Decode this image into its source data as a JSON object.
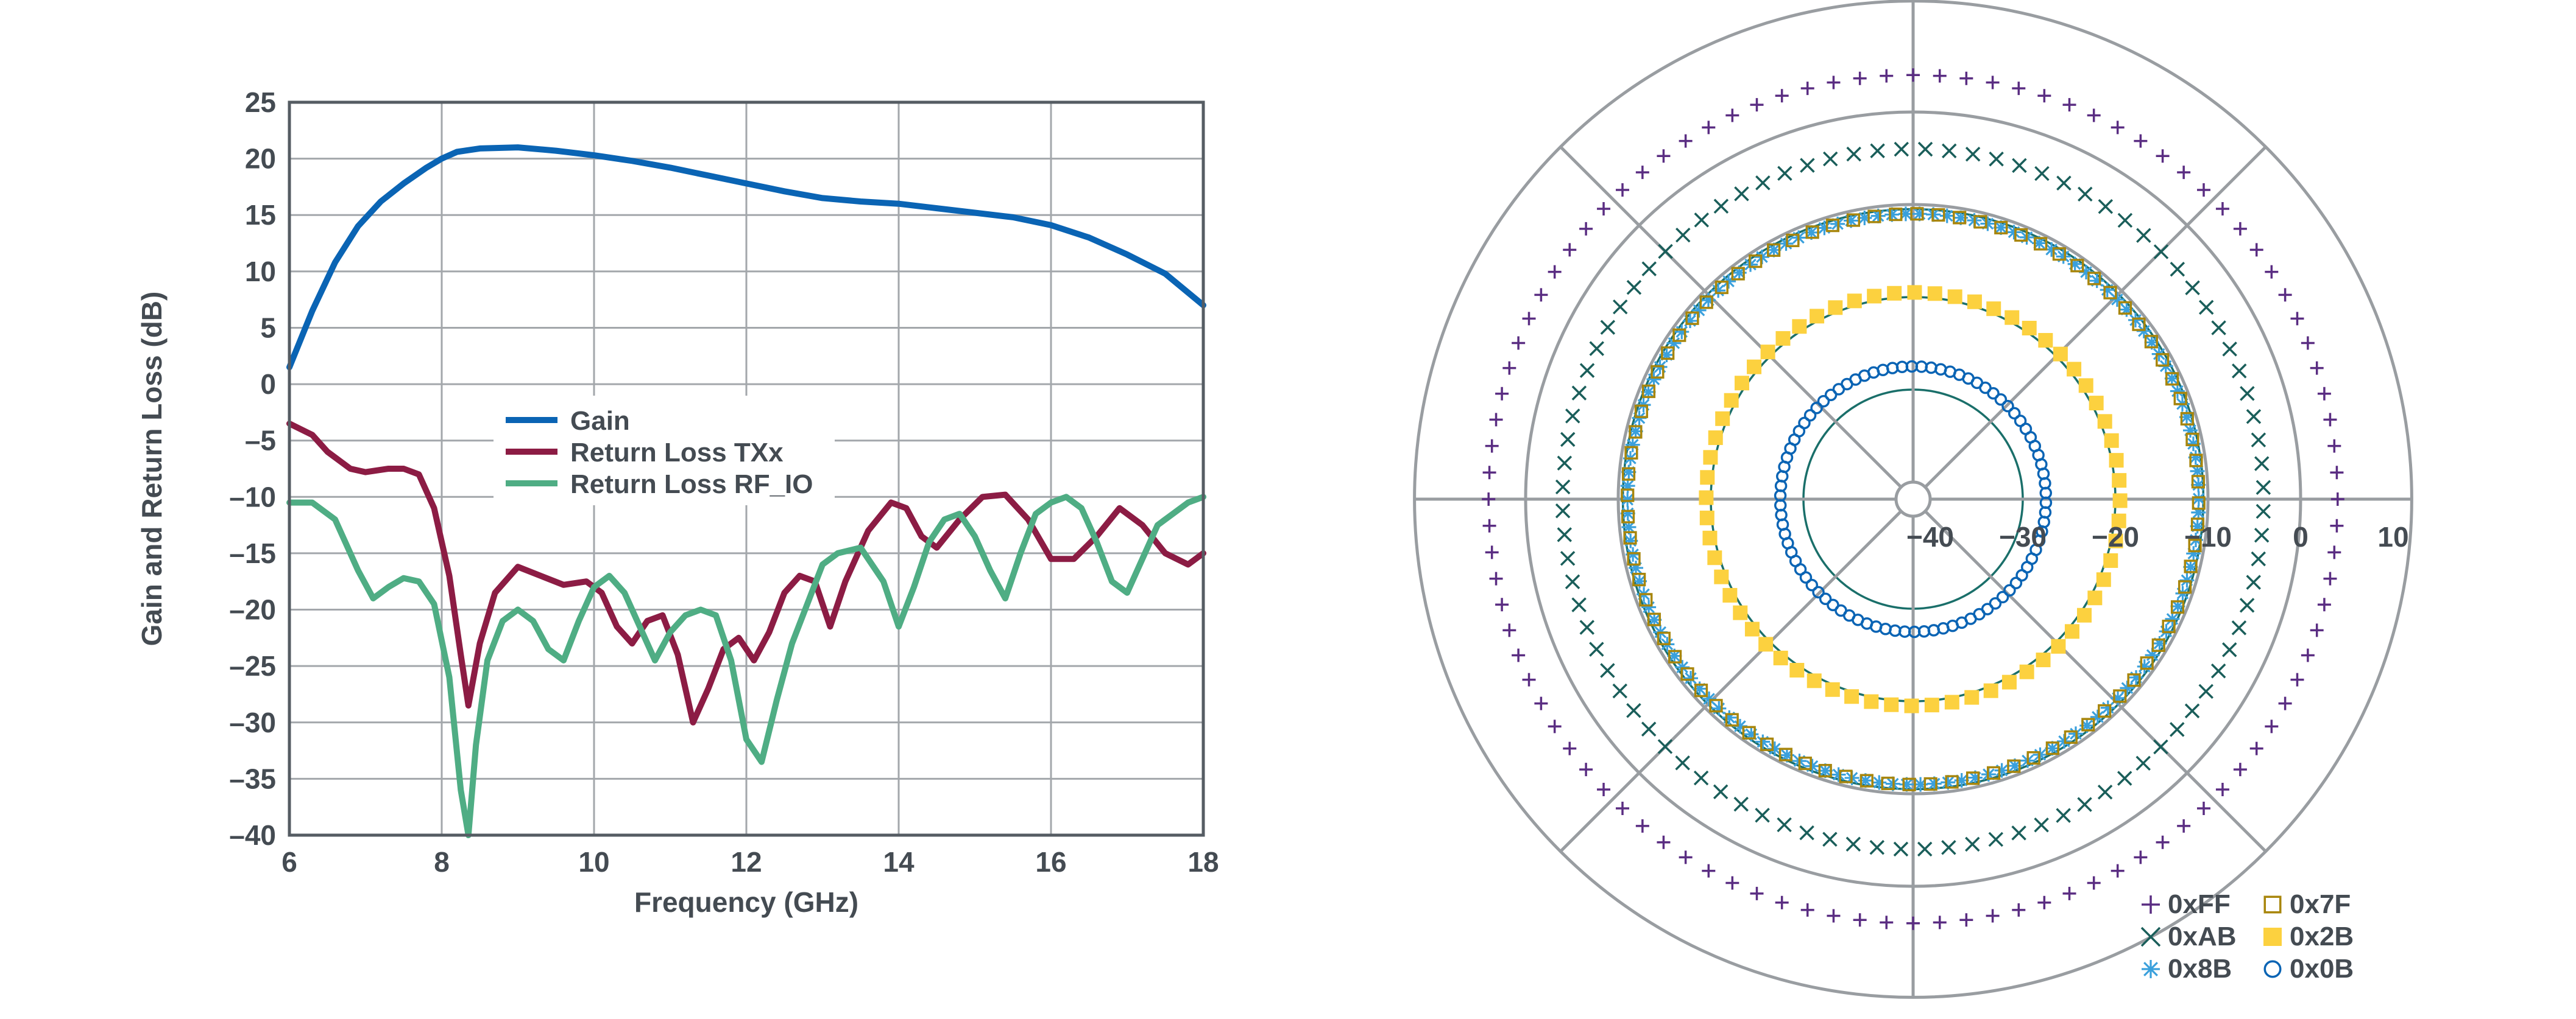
{
  "chart_data": [
    {
      "type": "line",
      "title": "",
      "xlabel": "Frequency (GHz)",
      "ylabel": "Gain and Return Loss (dB)",
      "xlim": [
        6,
        18
      ],
      "ylim": [
        -40,
        25
      ],
      "x_ticks": [
        "6",
        "8",
        "10",
        "12",
        "14",
        "16",
        "18"
      ],
      "y_ticks": [
        "25",
        "20",
        "15",
        "10",
        "5",
        "0",
        "–5",
        "–10",
        "–15",
        "–20",
        "–25",
        "–30",
        "–35",
        "–40"
      ],
      "grid": true,
      "legend_position": "center-left",
      "series": [
        {
          "name": "Gain",
          "color": "#0a64b4",
          "x": [
            6,
            6.3,
            6.6,
            6.9,
            7.2,
            7.5,
            7.8,
            8.0,
            8.2,
            8.5,
            9.0,
            9.5,
            10.0,
            10.5,
            11.0,
            11.5,
            12.0,
            12.5,
            13.0,
            13.5,
            14.0,
            14.5,
            15.0,
            15.5,
            16.0,
            16.5,
            17.0,
            17.5,
            18.0
          ],
          "y": [
            1.5,
            6.5,
            10.8,
            14.0,
            16.2,
            17.8,
            19.2,
            20.0,
            20.6,
            20.9,
            21.0,
            20.7,
            20.3,
            19.8,
            19.2,
            18.5,
            17.8,
            17.1,
            16.5,
            16.2,
            16.0,
            15.6,
            15.2,
            14.8,
            14.1,
            13.0,
            11.5,
            9.8,
            7.0
          ]
        },
        {
          "name": "Return Loss TXx",
          "color": "#8c1c44",
          "x": [
            6,
            6.3,
            6.5,
            6.8,
            7.0,
            7.3,
            7.5,
            7.7,
            7.9,
            8.1,
            8.25,
            8.35,
            8.5,
            8.7,
            9.0,
            9.3,
            9.6,
            9.9,
            10.1,
            10.3,
            10.5,
            10.7,
            10.9,
            11.1,
            11.3,
            11.5,
            11.7,
            11.9,
            12.1,
            12.3,
            12.5,
            12.7,
            12.9,
            13.1,
            13.3,
            13.6,
            13.9,
            14.1,
            14.3,
            14.5,
            14.8,
            15.1,
            15.4,
            15.7,
            16.0,
            16.3,
            16.6,
            16.9,
            17.2,
            17.5,
            17.8,
            18.0
          ],
          "y": [
            -3.5,
            -4.5,
            -6.0,
            -7.5,
            -7.8,
            -7.5,
            -7.5,
            -8.0,
            -11.0,
            -17.0,
            -24.0,
            -28.5,
            -23.0,
            -18.5,
            -16.2,
            -17.0,
            -17.8,
            -17.5,
            -18.5,
            -21.5,
            -23.0,
            -21.0,
            -20.5,
            -24.0,
            -30.0,
            -27.0,
            -23.5,
            -22.5,
            -24.5,
            -22.0,
            -18.5,
            -17.0,
            -17.5,
            -21.5,
            -17.5,
            -13.0,
            -10.5,
            -11.0,
            -13.5,
            -14.5,
            -12.0,
            -10.0,
            -9.8,
            -12.0,
            -15.5,
            -15.5,
            -13.5,
            -11.0,
            -12.5,
            -15.0,
            -16.0,
            -15.0
          ]
        },
        {
          "name": "Return Loss RF_IO",
          "color": "#4fad84",
          "x": [
            6,
            6.3,
            6.6,
            6.9,
            7.1,
            7.3,
            7.5,
            7.7,
            7.9,
            8.1,
            8.25,
            8.35,
            8.45,
            8.6,
            8.8,
            9.0,
            9.2,
            9.4,
            9.6,
            9.8,
            10.0,
            10.2,
            10.4,
            10.6,
            10.8,
            11.0,
            11.2,
            11.4,
            11.6,
            11.8,
            12.0,
            12.2,
            12.4,
            12.6,
            12.8,
            13.0,
            13.2,
            13.5,
            13.8,
            14.0,
            14.2,
            14.4,
            14.6,
            14.8,
            15.0,
            15.2,
            15.4,
            15.6,
            15.8,
            16.0,
            16.2,
            16.4,
            16.6,
            16.8,
            17.0,
            17.2,
            17.4,
            17.6,
            17.8,
            18.0
          ],
          "y": [
            -10.5,
            -10.5,
            -12.0,
            -16.5,
            -19.0,
            -18.0,
            -17.2,
            -17.5,
            -19.5,
            -26.0,
            -36.0,
            -40.0,
            -32.0,
            -24.5,
            -21.0,
            -20.0,
            -21.0,
            -23.5,
            -24.5,
            -21.0,
            -18.0,
            -17.0,
            -18.5,
            -21.5,
            -24.5,
            -22.0,
            -20.5,
            -20.0,
            -20.5,
            -24.5,
            -31.5,
            -33.5,
            -28.0,
            -23.0,
            -19.5,
            -16.0,
            -15.0,
            -14.5,
            -17.5,
            -21.5,
            -18.0,
            -14.0,
            -12.0,
            -11.5,
            -13.5,
            -16.5,
            -19.0,
            -15.0,
            -11.5,
            -10.5,
            -10.0,
            -11.0,
            -14.0,
            -17.5,
            -18.5,
            -15.5,
            -12.5,
            -11.5,
            -10.5,
            -10.0
          ]
        }
      ]
    },
    {
      "type": "polar-scatter",
      "title": "",
      "r_ticks": [
        "−40",
        "−30",
        "−20",
        "−10",
        "0",
        "10"
      ],
      "r_values": [
        -40,
        -30,
        -20,
        -10,
        0,
        10
      ],
      "r_min": -40,
      "r_max": 10,
      "angular_grid_deg": [
        0,
        45,
        90,
        135,
        180,
        225,
        270,
        315
      ],
      "legend_position": "bottom-right",
      "series": [
        {
          "name": "0xFF",
          "marker": "plus",
          "color": "#5a2d82",
          "radius": 4,
          "count": 100
        },
        {
          "name": "0xAB",
          "marker": "x",
          "color": "#1a5e5a",
          "radius": -4,
          "count": 92
        },
        {
          "name": "0x8B",
          "marker": "asterisk",
          "color": "#3aa0dc",
          "radius": -11,
          "count": 130
        },
        {
          "name": "0x7F",
          "marker": "open-square",
          "color": "#a8860c",
          "radius": -11,
          "count": 84
        },
        {
          "name": "0x2B",
          "marker": "filled-square",
          "color": "#fcd13f",
          "radius": -19.5,
          "count": 64
        },
        {
          "name": "0x0B",
          "marker": "open-circle",
          "color": "#0a64b4",
          "radius": -27.5,
          "count": 86
        }
      ]
    }
  ]
}
